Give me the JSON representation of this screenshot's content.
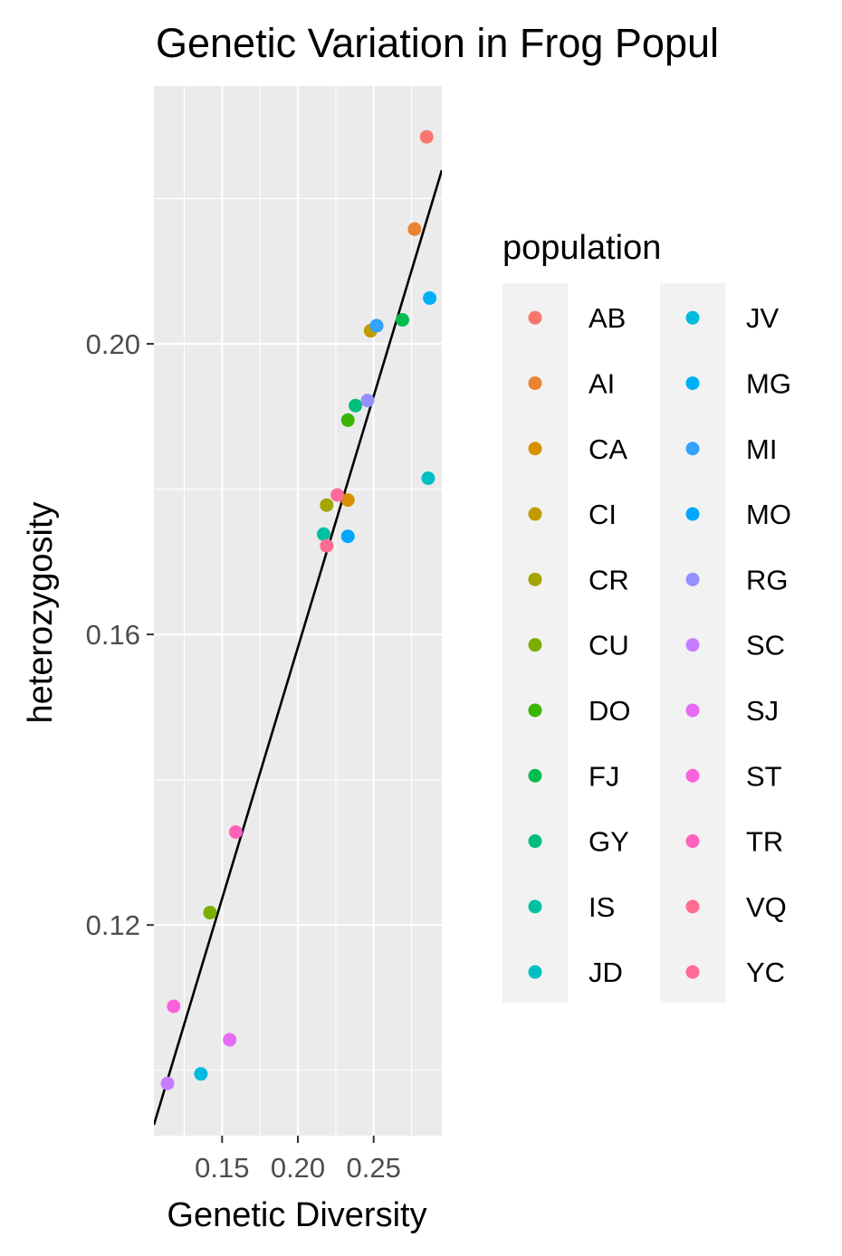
{
  "chart_data": {
    "type": "scatter",
    "title": "Genetic Variation in Frog Popul",
    "xlabel": "Genetic Diversity",
    "ylabel": "heterozygosity",
    "xlim": [
      0.105,
      0.295
    ],
    "ylim": [
      0.091,
      0.2355
    ],
    "x_ticks": [
      0.15,
      0.2,
      0.25
    ],
    "x_tick_labels": [
      "0.15",
      "0.20",
      "0.25"
    ],
    "y_ticks": [
      0.12,
      0.16,
      0.2
    ],
    "y_tick_labels": [
      "0.12",
      "0.16",
      "0.20"
    ],
    "grid": true,
    "legend_title": "population",
    "legend_position": "right",
    "series": [
      {
        "name": "AB",
        "color": "#F8766D",
        "x": 0.285,
        "y": 0.2285
      },
      {
        "name": "AI",
        "color": "#EA8331",
        "x": 0.277,
        "y": 0.2158
      },
      {
        "name": "CA",
        "color": "#D89000",
        "x": 0.233,
        "y": 0.1785
      },
      {
        "name": "CI",
        "color": "#C09B00",
        "x": 0.248,
        "y": 0.2018
      },
      {
        "name": "CR",
        "color": "#A3A500",
        "x": 0.219,
        "y": 0.1778
      },
      {
        "name": "CU",
        "color": "#7CAE00",
        "x": 0.142,
        "y": 0.1217
      },
      {
        "name": "DO",
        "color": "#39B600",
        "x": 0.233,
        "y": 0.1895
      },
      {
        "name": "FJ",
        "color": "#00BB4E",
        "x": 0.269,
        "y": 0.2033
      },
      {
        "name": "GY",
        "color": "#00BF7D",
        "x": 0.238,
        "y": 0.1915
      },
      {
        "name": "IS",
        "color": "#00C1A3",
        "x": 0.217,
        "y": 0.1738
      },
      {
        "name": "JD",
        "color": "#00BFC4",
        "x": 0.286,
        "y": 0.1815
      },
      {
        "name": "JV",
        "color": "#00BAE0",
        "x": 0.136,
        "y": 0.0995
      },
      {
        "name": "MG",
        "color": "#00B0F6",
        "x": 0.287,
        "y": 0.2063
      },
      {
        "name": "MI",
        "color": "#35A2FF",
        "x": 0.252,
        "y": 0.2025
      },
      {
        "name": "MO",
        "color": "#00A5FF",
        "x": 0.233,
        "y": 0.1735
      },
      {
        "name": "RG",
        "color": "#9590FF",
        "x": 0.246,
        "y": 0.1922
      },
      {
        "name": "SC",
        "color": "#C77CFF",
        "x": 0.114,
        "y": 0.0982
      },
      {
        "name": "SJ",
        "color": "#E76BF3",
        "x": 0.155,
        "y": 0.1042
      },
      {
        "name": "ST",
        "color": "#FA62DB",
        "x": 0.118,
        "y": 0.1088
      },
      {
        "name": "TR",
        "color": "#FF62BC",
        "x": 0.159,
        "y": 0.1328
      },
      {
        "name": "VQ",
        "color": "#FF6C91",
        "x": 0.219,
        "y": 0.1722
      },
      {
        "name": "YC",
        "color": "#FF6A98",
        "x": 0.226,
        "y": 0.1792
      }
    ],
    "trend_line": {
      "x": [
        0.105,
        0.295
      ],
      "y": [
        0.0925,
        0.2239
      ]
    }
  },
  "colors": {
    "panel_background": "#EBEBEB",
    "legend_key_background": "#F2F2F2",
    "grid": "#FFFFFF",
    "trend_line": "#000000"
  }
}
